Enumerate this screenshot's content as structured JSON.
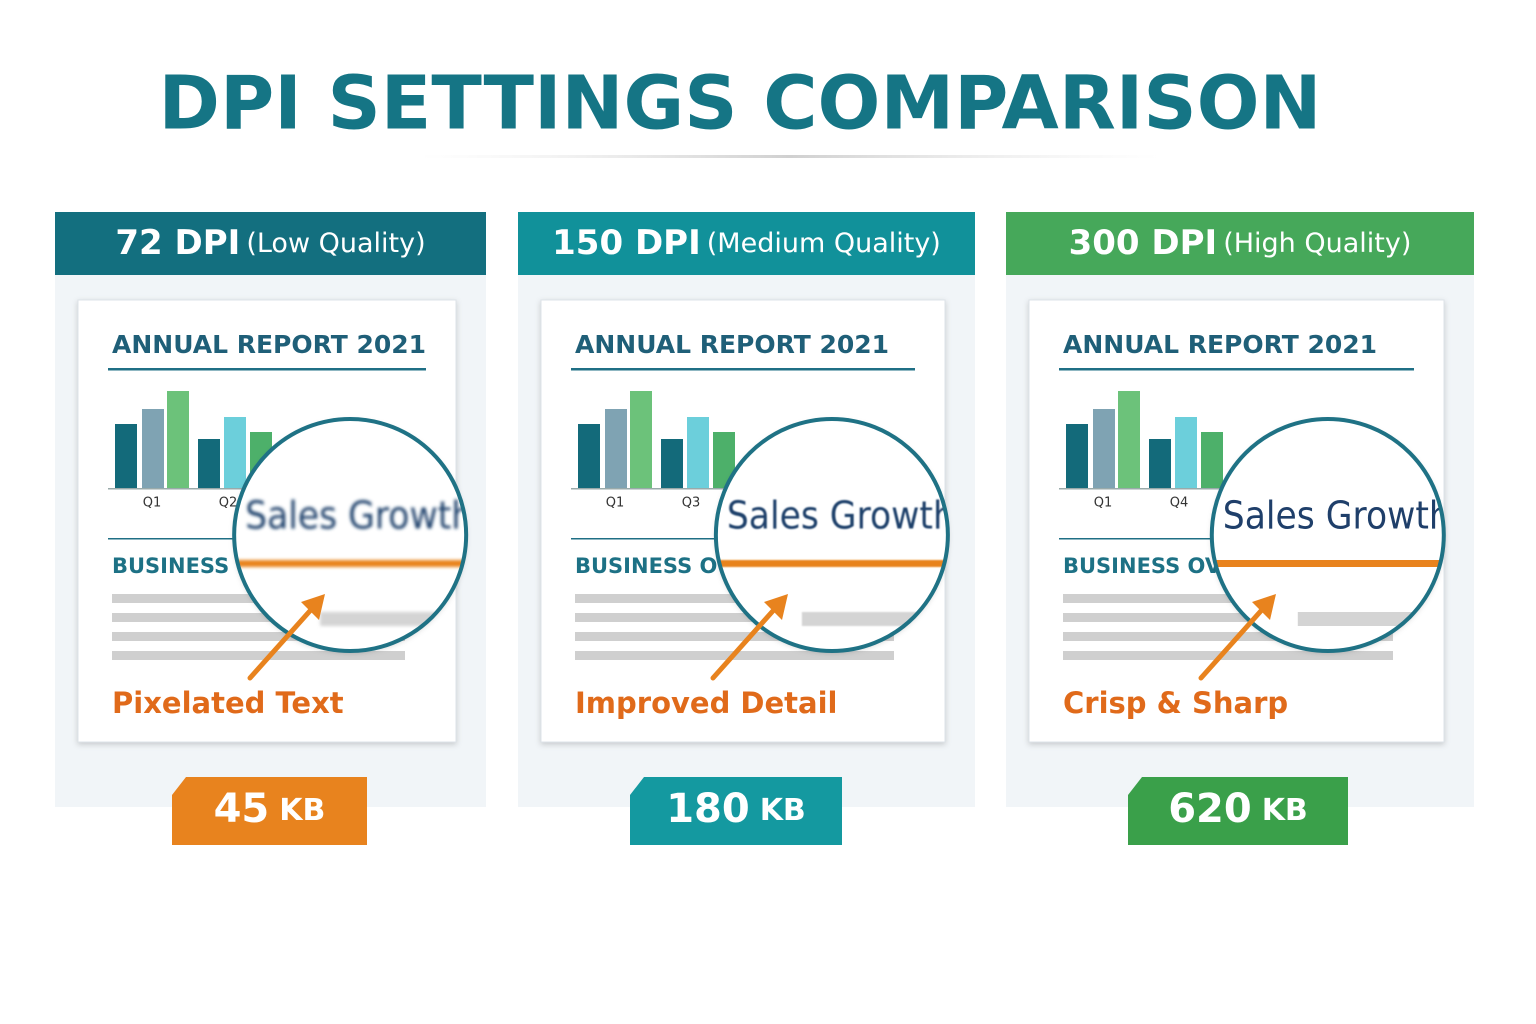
{
  "title": "DPI SETTINGS COMPARISON",
  "panels": [
    {
      "dpi": "72 DPI",
      "quality": "(Low Quality)",
      "report_title": "ANNUAL REPORT 2021",
      "chart_labels": [
        "Q1",
        "Q2"
      ],
      "zoom_text": "Sales Growth",
      "section_heading": "BUSINESS OVERVIEW",
      "caption": "Pixelated Text",
      "file_size": {
        "value": 45,
        "unit": "KB"
      }
    },
    {
      "dpi": "150 DPI",
      "quality": "(Medium Quality)",
      "report_title": "ANNUAL REPORT 2021",
      "chart_labels": [
        "Q1",
        "Q3"
      ],
      "zoom_text": "Sales Growth",
      "section_heading": "BUSINESS OVERVIEW",
      "caption": "Improved Detail",
      "file_size": {
        "value": 180,
        "unit": "KB"
      }
    },
    {
      "dpi": "300 DPI",
      "quality": "(High Quality)",
      "report_title": "ANNUAL REPORT 2021",
      "chart_labels": [
        "Q1",
        "Q4"
      ],
      "zoom_text": "Sales Growth",
      "section_heading": "BUSINESS OVERVIEW",
      "caption": "Crisp & Sharp",
      "file_size": {
        "value": 620,
        "unit": "KB"
      }
    }
  ]
}
